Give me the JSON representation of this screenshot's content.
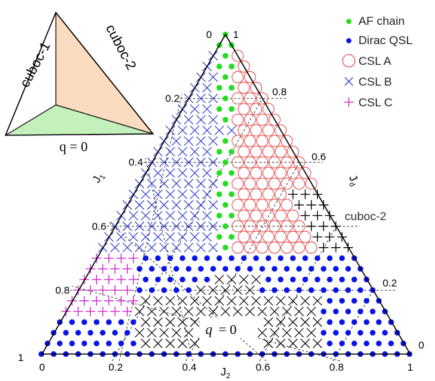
{
  "chart_data": {
    "type": "scatter",
    "description_note": "",
    "axes": {
      "J1": {
        "label": "J1",
        "ticks": [
          "0",
          "0.2",
          "0.4",
          "0.6",
          "0.8",
          "1"
        ]
      },
      "J2": {
        "label": "J2",
        "ticks": [
          "0",
          "0.2",
          "0.4",
          "0.6",
          "0.8",
          "1"
        ]
      },
      "Jd": {
        "label": "Jd",
        "ticks": [
          "1",
          "0.8",
          "0.6",
          "0.2",
          "0"
        ]
      }
    },
    "series": [
      {
        "name": "AF chain",
        "marker": "filled-circle",
        "color": "#22dd22"
      },
      {
        "name": "Dirac QSL",
        "marker": "filled-circle",
        "color": "#0a14e6"
      },
      {
        "name": "CSL A",
        "marker": "open-circle",
        "color": "#e03030"
      },
      {
        "name": "CSL B",
        "marker": "x",
        "color": "#2a35c8"
      },
      {
        "name": "CSL C",
        "marker": "plus",
        "color": "#d020d0"
      }
    ],
    "unlabeled_markers": {
      "cuboc2_plus_color": "#000000",
      "q0_x_color": "#000000"
    },
    "region_labels": {
      "cuboc2": "cuboc-2",
      "q0": "q = 0"
    },
    "inset": {
      "labels": [
        "cuboc-1",
        "cuboc-2",
        "q = 0"
      ],
      "colors": {
        "cuboc2": "#fcdcc0",
        "q0": "#c4f0bc"
      }
    }
  }
}
